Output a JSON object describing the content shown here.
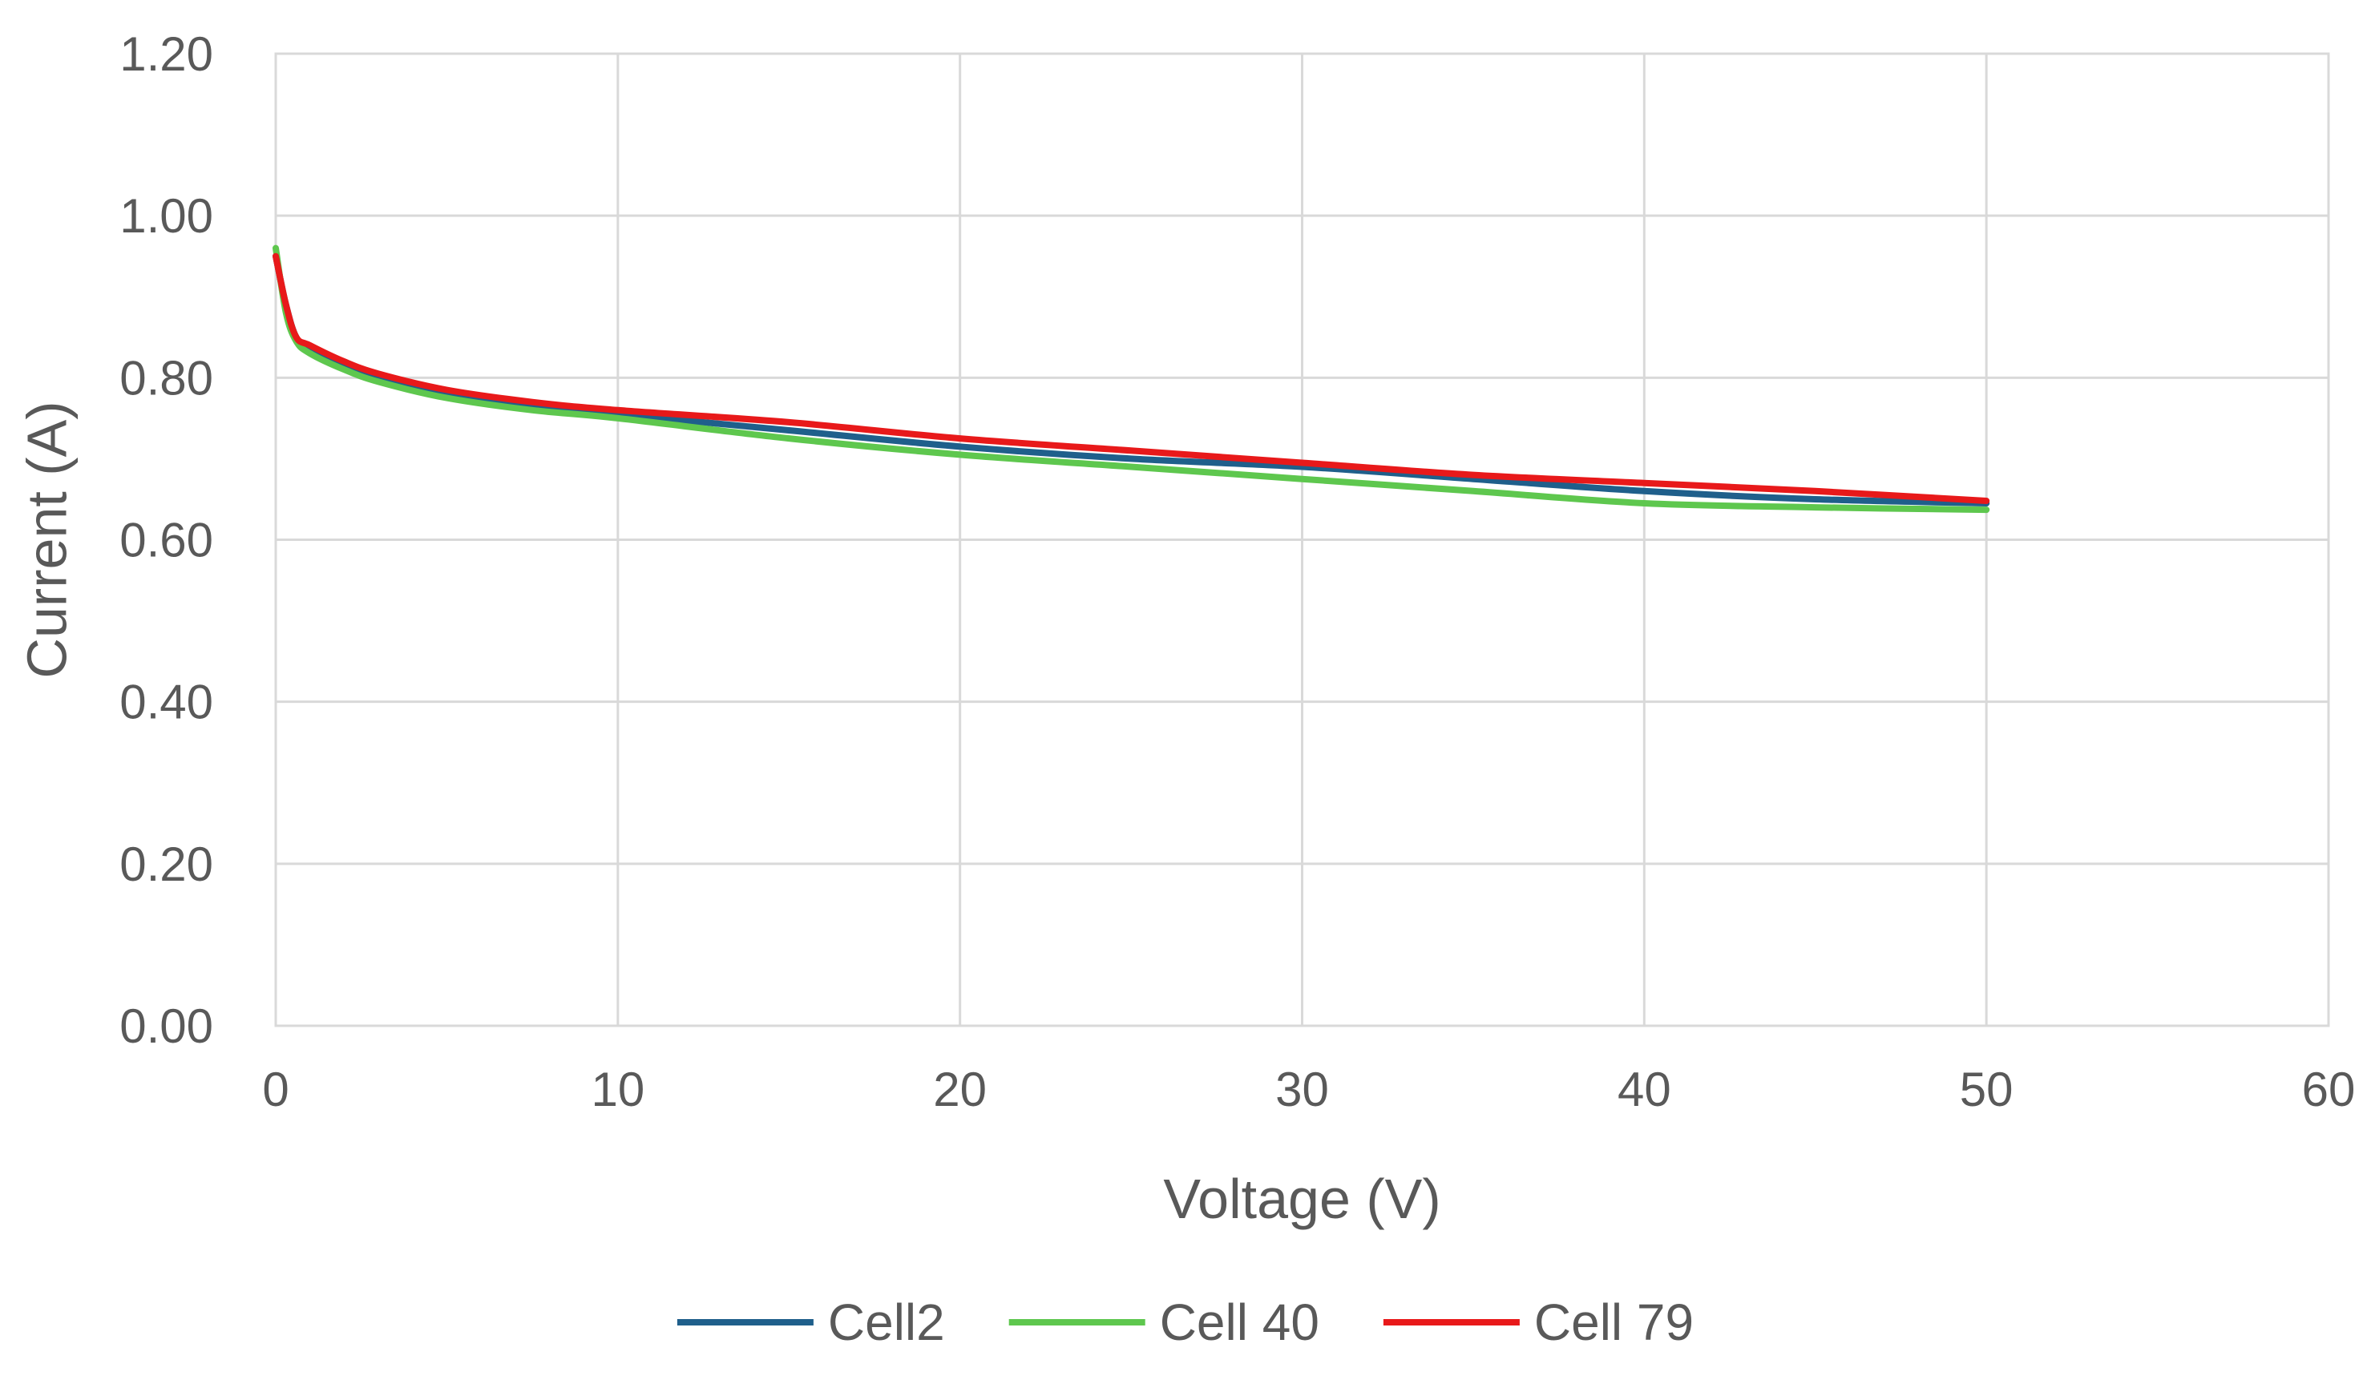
{
  "chart_data": {
    "type": "line",
    "title": "",
    "xlabel": "Voltage (V)",
    "ylabel": "Current (A)",
    "xlim": [
      0,
      60
    ],
    "ylim": [
      0,
      1.2
    ],
    "x_ticks": [
      0,
      10,
      20,
      30,
      40,
      50,
      60
    ],
    "x_tick_labels": [
      "0",
      "10",
      "20",
      "30",
      "40",
      "50",
      "60"
    ],
    "y_ticks": [
      0,
      0.2,
      0.4,
      0.6,
      0.8,
      1.0,
      1.2
    ],
    "y_tick_labels": [
      "0.00",
      "0.20",
      "0.40",
      "0.60",
      "0.80",
      "1.00",
      "1.20"
    ],
    "grid": true,
    "legend_position": "bottom",
    "series": [
      {
        "name": "Cell2",
        "color": "#1f5f8b",
        "x": [
          0,
          0.3,
          0.6,
          1,
          2,
          3,
          5,
          7.5,
          10,
          15,
          20,
          25,
          30,
          35,
          40,
          45,
          50
        ],
        "y": [
          0.95,
          0.89,
          0.85,
          0.835,
          0.815,
          0.8,
          0.78,
          0.765,
          0.755,
          0.735,
          0.715,
          0.7,
          0.69,
          0.675,
          0.66,
          0.65,
          0.645
        ]
      },
      {
        "name": "Cell 40",
        "color": "#5ec74e",
        "x": [
          0,
          0.3,
          0.6,
          1,
          2,
          3,
          5,
          7.5,
          10,
          15,
          20,
          25,
          30,
          35,
          40,
          45,
          50
        ],
        "y": [
          0.96,
          0.88,
          0.845,
          0.83,
          0.81,
          0.795,
          0.775,
          0.76,
          0.75,
          0.725,
          0.705,
          0.69,
          0.675,
          0.66,
          0.645,
          0.64,
          0.637
        ]
      },
      {
        "name": "Cell 79",
        "color": "#e8191a",
        "x": [
          0,
          0.3,
          0.6,
          1,
          2,
          3,
          5,
          7.5,
          10,
          15,
          20,
          25,
          30,
          35,
          40,
          45,
          50
        ],
        "y": [
          0.95,
          0.89,
          0.85,
          0.84,
          0.82,
          0.805,
          0.785,
          0.77,
          0.76,
          0.745,
          0.725,
          0.71,
          0.695,
          0.68,
          0.67,
          0.66,
          0.648
        ]
      }
    ]
  }
}
